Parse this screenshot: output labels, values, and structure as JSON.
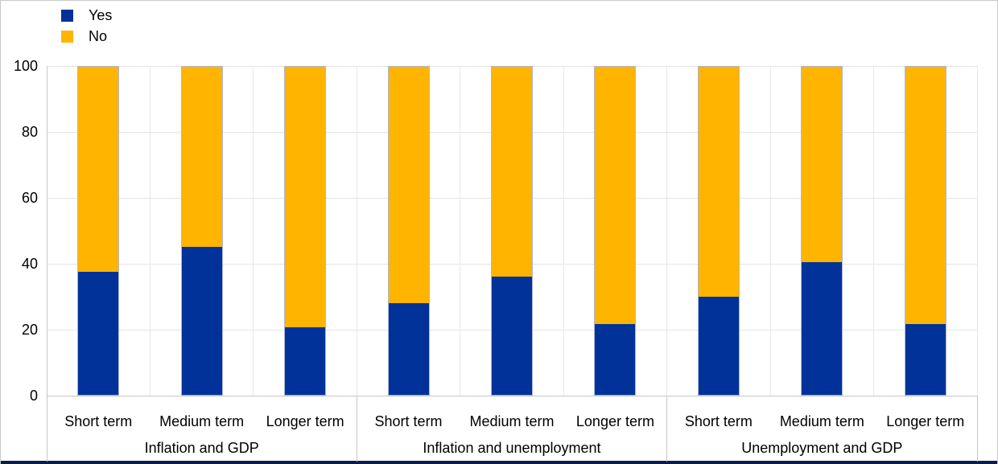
{
  "legend": {
    "items": [
      {
        "label": "Yes",
        "color": "#003299"
      },
      {
        "label": "No",
        "color": "#FFB400"
      }
    ]
  },
  "chart_data": {
    "type": "bar",
    "stacked": true,
    "stack_total": 100,
    "title": "",
    "xlabel": "",
    "ylabel": "",
    "groups": [
      "Inflation and GDP",
      "Inflation and unemployment",
      "Unemployment and GDP"
    ],
    "categories": [
      "Short term",
      "Medium term",
      "Longer term"
    ],
    "series": [
      {
        "name": "Yes",
        "color": "#003299",
        "values": [
          [
            37.5,
            45,
            20.5
          ],
          [
            28,
            36,
            21.5
          ],
          [
            30,
            40.5,
            21.5
          ]
        ]
      },
      {
        "name": "No",
        "color": "#FFB400",
        "values": [
          [
            62.5,
            55,
            79.5
          ],
          [
            72,
            64,
            78.5
          ],
          [
            70,
            59.5,
            78.5
          ]
        ]
      }
    ],
    "ylim": [
      0,
      100
    ],
    "y_ticks": [
      0,
      20,
      40,
      60,
      80,
      100
    ],
    "grid": true,
    "legend_position": "top-left"
  }
}
